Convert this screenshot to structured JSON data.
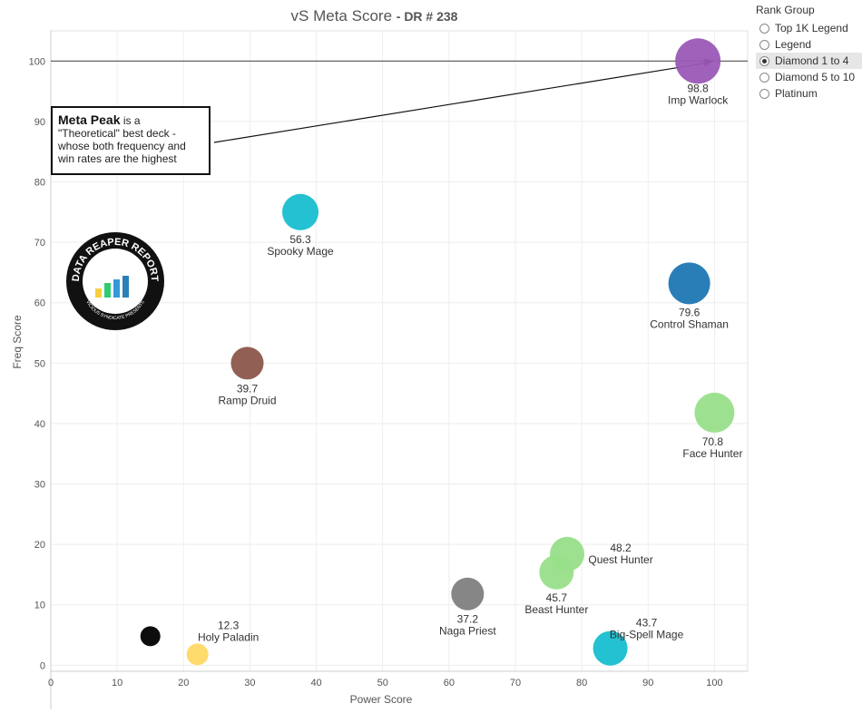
{
  "title": "vS Meta Score",
  "subtitle": "- DR # 238",
  "legend": {
    "title": "Rank Group",
    "items": [
      {
        "label": "Top 1K Legend",
        "selected": false
      },
      {
        "label": "Legend",
        "selected": false
      },
      {
        "label": "Diamond 1 to 4",
        "selected": true
      },
      {
        "label": "Diamond 5 to 10",
        "selected": false
      },
      {
        "label": "Platinum",
        "selected": false
      }
    ]
  },
  "annotation": {
    "bold": "Meta Peak",
    "text": " is a \"Theoretical\" best deck - whose both frequency and win rates are the highest"
  },
  "logo": {
    "top_text": "DATA REAPER REPORT",
    "bottom_text": "VICIOUS SYNDICATE PRESENTS"
  },
  "chart_data": {
    "type": "scatter",
    "title": "vS Meta Score - DR # 238",
    "xlabel": "Power Score",
    "ylabel": "Freq Score",
    "xlim": [
      0,
      105
    ],
    "ylim": [
      -1,
      105
    ],
    "xticks": [
      0,
      10,
      20,
      30,
      40,
      50,
      60,
      70,
      80,
      90,
      100
    ],
    "yticks": [
      0,
      10,
      20,
      30,
      40,
      50,
      60,
      70,
      80,
      90,
      100
    ],
    "grid": true,
    "reference_line": {
      "y": 100
    },
    "annotation_arrow": {
      "to": [
        100,
        100
      ]
    },
    "points": [
      {
        "name": "Imp Warlock",
        "score": "98.8",
        "x": 97.5,
        "y": 100,
        "color": "#9b59b6"
      },
      {
        "name": "Spooky Mage",
        "score": "56.3",
        "x": 37.6,
        "y": 75,
        "color": "#17becf"
      },
      {
        "name": "Control Shaman",
        "score": "79.6",
        "x": 96.2,
        "y": 63.2,
        "color": "#1f77b4"
      },
      {
        "name": "Ramp Druid",
        "score": "39.7",
        "x": 29.6,
        "y": 50,
        "color": "#8c564b"
      },
      {
        "name": "Face Hunter",
        "score": "70.8",
        "x": 100,
        "y": 41.8,
        "color": "#98df8a"
      },
      {
        "name": "Quest Hunter",
        "score": "48.2",
        "x": 77.8,
        "y": 18.4,
        "color": "#98df8a"
      },
      {
        "name": "Beast Hunter",
        "score": "45.7",
        "x": 76.2,
        "y": 15.4,
        "color": "#98df8a"
      },
      {
        "name": "Naga Priest",
        "score": "37.2",
        "x": 62.8,
        "y": 11.8,
        "color": "#7f7f7f"
      },
      {
        "name": "Big-Spell Mage",
        "score": "43.7",
        "x": 84.3,
        "y": 2.8,
        "color": "#17becf"
      },
      {
        "name": "Holy Paladin",
        "score": "12.3",
        "x": 22.1,
        "y": 1.8,
        "color": "#ffd966"
      },
      {
        "name": "",
        "score": "",
        "x": 15,
        "y": 4.8,
        "color": "#000000"
      }
    ]
  }
}
